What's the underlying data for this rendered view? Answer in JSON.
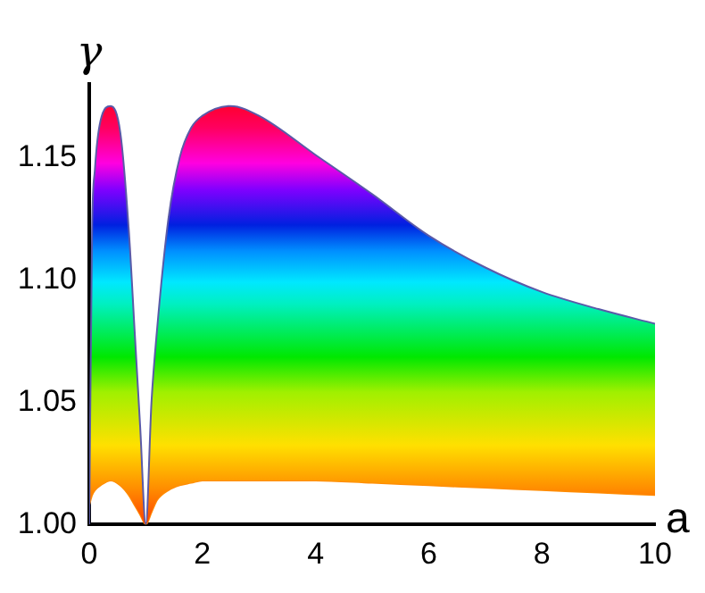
{
  "chart_data": {
    "type": "area",
    "xlabel": "a",
    "ylabel": "γ",
    "x": [
      0,
      0.05,
      0.1,
      0.2,
      0.38,
      0.55,
      0.7,
      0.8,
      0.9,
      1,
      1.1,
      1.2,
      1.4,
      1.6,
      1.8,
      2,
      2.5,
      3,
      4,
      5,
      6,
      7,
      8,
      9,
      10
    ],
    "series": [
      {
        "color": "#5a5aa8",
        "values": [
          1.0,
          1.12,
          1.145,
          1.165,
          1.171,
          1.16,
          1.12,
          1.08,
          1.04,
          1.0,
          1.05,
          1.08,
          1.125,
          1.15,
          1.162,
          1.167,
          1.171,
          1.167,
          1.151,
          1.135,
          1.118,
          1.105,
          1.095,
          1.088,
          1.082
        ]
      },
      {
        "type": "line",
        "color": "#ff8c00",
        "values": [
          1.008,
          1.012,
          1.014,
          1.016,
          1.018,
          1.016,
          1.012,
          1.008,
          1.004,
          1.0,
          1.005,
          1.01,
          1.014,
          1.016,
          1.017,
          1.018,
          1.018,
          1.018,
          1.018,
          1.017,
          1.016,
          1.015,
          1.014,
          1.013,
          1.012
        ]
      }
    ],
    "xlim": [
      0,
      10
    ],
    "xticks": [
      0,
      2,
      4,
      6,
      8,
      10
    ],
    "ylim": [
      1.0,
      1.18
    ],
    "yticks": [
      {
        "value": 1.0,
        "label": "1.00"
      },
      {
        "value": 1.05,
        "label": "1.05"
      },
      {
        "value": 1.1,
        "label": "1.10"
      },
      {
        "value": 1.15,
        "label": "1.15"
      }
    ],
    "grid": false,
    "legend": false
  }
}
